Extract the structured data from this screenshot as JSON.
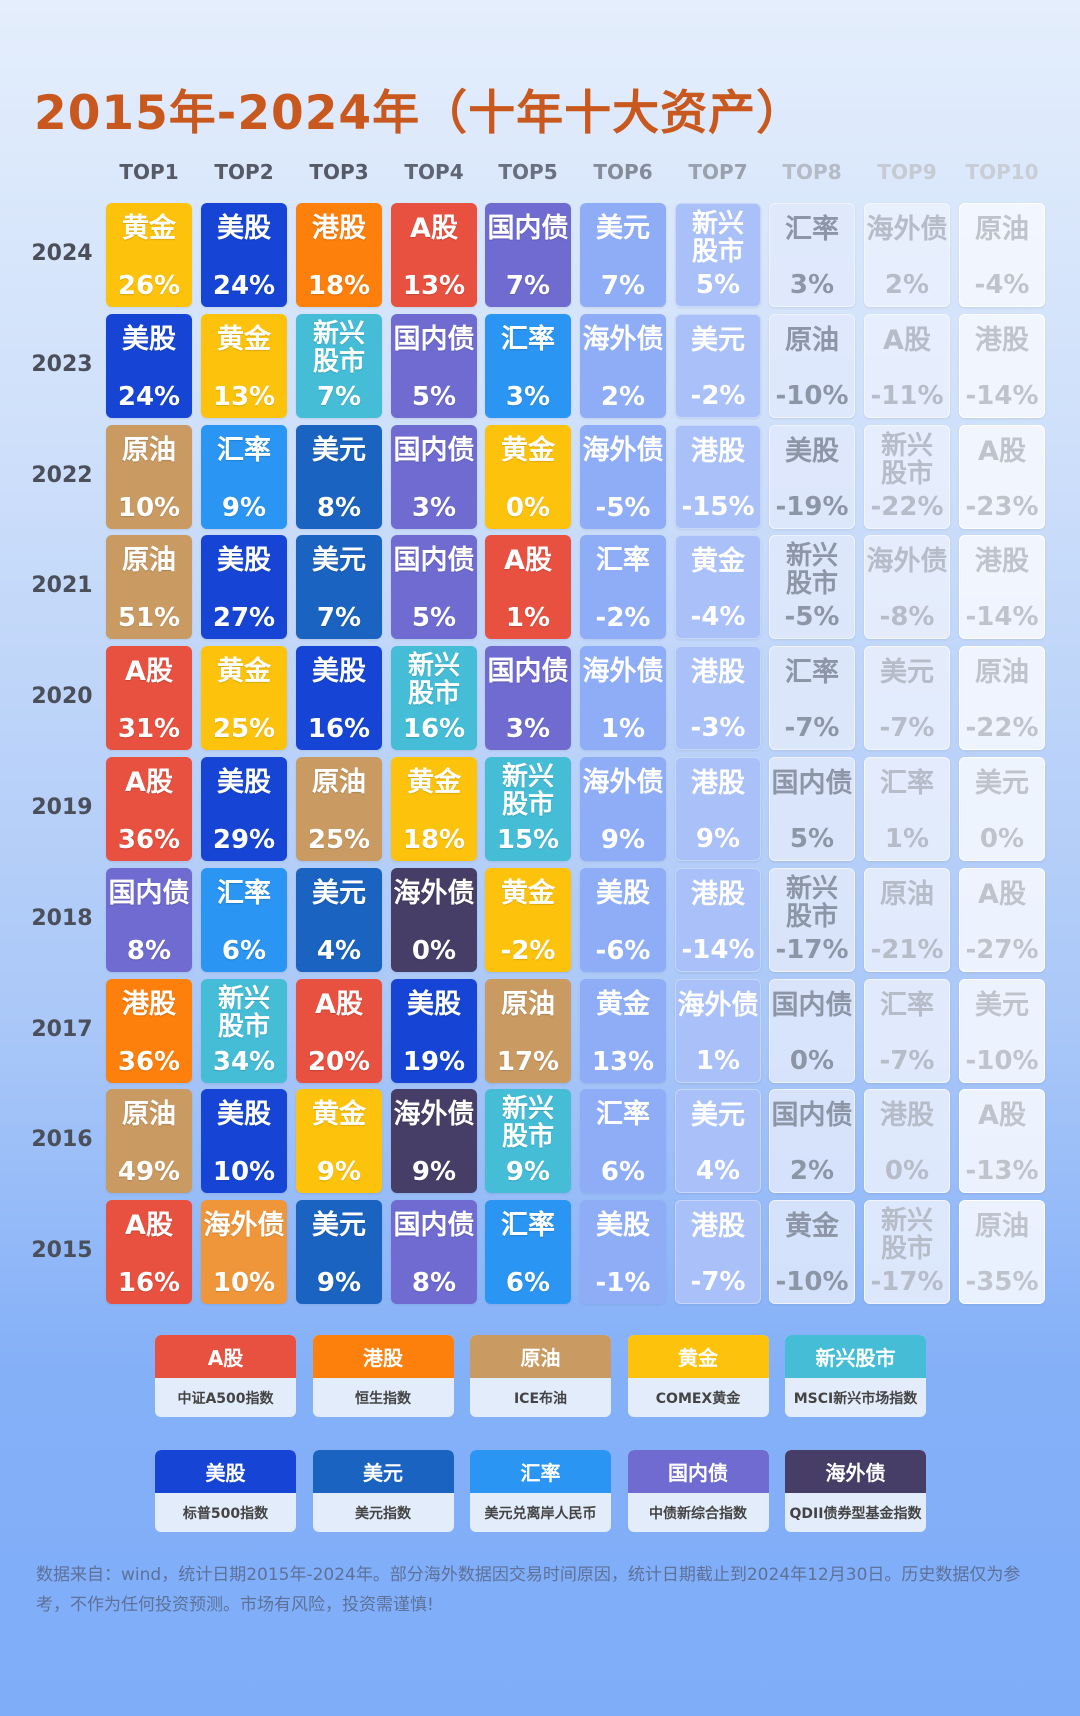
{
  "title": "2015年-2024年（十年十大资产）",
  "headers": [
    "TOP1",
    "TOP2",
    "TOP3",
    "TOP4",
    "TOP5",
    "TOP6",
    "TOP7",
    "TOP8",
    "TOP9",
    "TOP10"
  ],
  "header_colors": [
    "#555a66",
    "#555a66",
    "#555a66",
    "#5f6573",
    "#6a7080",
    "#858b98",
    "#9aa0ac",
    "#b5bbc6",
    "#c5cad3",
    "#c8cdd6"
  ],
  "asset_colors": {
    "A股": "#e8503f",
    "港股": "#fd800c",
    "原油": "#c99a62",
    "黄金": "#fdc30c",
    "新兴股市": "#45bdd7",
    "美股": "#1645d6",
    "美元": "#1b63c1",
    "汇率": "#2a95f2",
    "国内债": "#6f6bd0",
    "海外债": "#463e66"
  },
  "special_colors": {
    "2015-1": "#f0963a"
  },
  "rows": [
    {
      "year": "2024",
      "cells": [
        [
          "黄金",
          "26%"
        ],
        [
          "美股",
          "24%"
        ],
        [
          "港股",
          "18%"
        ],
        [
          "A股",
          "13%"
        ],
        [
          "国内债",
          "7%"
        ],
        [
          "美元",
          "7%"
        ],
        [
          "新兴股市",
          "5%"
        ],
        [
          "汇率",
          "3%"
        ],
        [
          "海外债",
          "2%"
        ],
        [
          "原油",
          "-4%"
        ]
      ]
    },
    {
      "year": "2023",
      "cells": [
        [
          "美股",
          "24%"
        ],
        [
          "黄金",
          "13%"
        ],
        [
          "新兴股市",
          "7%"
        ],
        [
          "国内债",
          "5%"
        ],
        [
          "汇率",
          "3%"
        ],
        [
          "海外债",
          "2%"
        ],
        [
          "美元",
          "-2%"
        ],
        [
          "原油",
          "-10%"
        ],
        [
          "A股",
          "-11%"
        ],
        [
          "港股",
          "-14%"
        ]
      ]
    },
    {
      "year": "2022",
      "cells": [
        [
          "原油",
          "10%"
        ],
        [
          "汇率",
          "9%"
        ],
        [
          "美元",
          "8%"
        ],
        [
          "国内债",
          "3%"
        ],
        [
          "黄金",
          "0%"
        ],
        [
          "海外债",
          "-5%"
        ],
        [
          "港股",
          "-15%"
        ],
        [
          "美股",
          "-19%"
        ],
        [
          "新兴股市",
          "-22%"
        ],
        [
          "A股",
          "-23%"
        ]
      ]
    },
    {
      "year": "2021",
      "cells": [
        [
          "原油",
          "51%"
        ],
        [
          "美股",
          "27%"
        ],
        [
          "美元",
          "7%"
        ],
        [
          "国内债",
          "5%"
        ],
        [
          "A股",
          "1%"
        ],
        [
          "汇率",
          "-2%"
        ],
        [
          "黄金",
          "-4%"
        ],
        [
          "新兴股市",
          "-5%"
        ],
        [
          "海外债",
          "-8%"
        ],
        [
          "港股",
          "-14%"
        ]
      ]
    },
    {
      "year": "2020",
      "cells": [
        [
          "A股",
          "31%"
        ],
        [
          "黄金",
          "25%"
        ],
        [
          "美股",
          "16%"
        ],
        [
          "新兴股市",
          "16%"
        ],
        [
          "国内债",
          "3%"
        ],
        [
          "海外债",
          "1%"
        ],
        [
          "港股",
          "-3%"
        ],
        [
          "汇率",
          "-7%"
        ],
        [
          "美元",
          "-7%"
        ],
        [
          "原油",
          "-22%"
        ]
      ]
    },
    {
      "year": "2019",
      "cells": [
        [
          "A股",
          "36%"
        ],
        [
          "美股",
          "29%"
        ],
        [
          "原油",
          "25%"
        ],
        [
          "黄金",
          "18%"
        ],
        [
          "新兴股市",
          "15%"
        ],
        [
          "海外债",
          "9%"
        ],
        [
          "港股",
          "9%"
        ],
        [
          "国内债",
          "5%"
        ],
        [
          "汇率",
          "1%"
        ],
        [
          "美元",
          "0%"
        ]
      ]
    },
    {
      "year": "2018",
      "cells": [
        [
          "国内债",
          "8%"
        ],
        [
          "汇率",
          "6%"
        ],
        [
          "美元",
          "4%"
        ],
        [
          "海外债",
          "0%"
        ],
        [
          "黄金",
          "-2%"
        ],
        [
          "美股",
          "-6%"
        ],
        [
          "港股",
          "-14%"
        ],
        [
          "新兴股市",
          "-17%"
        ],
        [
          "原油",
          "-21%"
        ],
        [
          "A股",
          "-27%"
        ]
      ]
    },
    {
      "year": "2017",
      "cells": [
        [
          "港股",
          "36%"
        ],
        [
          "新兴股市",
          "34%"
        ],
        [
          "A股",
          "20%"
        ],
        [
          "美股",
          "19%"
        ],
        [
          "原油",
          "17%"
        ],
        [
          "黄金",
          "13%"
        ],
        [
          "海外债",
          "1%"
        ],
        [
          "国内债",
          "0%"
        ],
        [
          "汇率",
          "-7%"
        ],
        [
          "美元",
          "-10%"
        ]
      ]
    },
    {
      "year": "2016",
      "cells": [
        [
          "原油",
          "49%"
        ],
        [
          "美股",
          "10%"
        ],
        [
          "黄金",
          "9%"
        ],
        [
          "海外债",
          "9%"
        ],
        [
          "新兴股市",
          "9%"
        ],
        [
          "汇率",
          "6%"
        ],
        [
          "美元",
          "4%"
        ],
        [
          "国内债",
          "2%"
        ],
        [
          "港股",
          "0%"
        ],
        [
          "A股",
          "-13%"
        ]
      ]
    },
    {
      "year": "2015",
      "cells": [
        [
          "A股",
          "16%"
        ],
        [
          "海外债",
          "10%"
        ],
        [
          "美元",
          "9%"
        ],
        [
          "国内债",
          "8%"
        ],
        [
          "汇率",
          "6%"
        ],
        [
          "美股",
          "-1%"
        ],
        [
          "港股",
          "-7%"
        ],
        [
          "黄金",
          "-10%"
        ],
        [
          "新兴股市",
          "-17%"
        ],
        [
          "原油",
          "-35%"
        ]
      ]
    }
  ],
  "legend": [
    {
      "name": "A股",
      "desc": "中证A500指数"
    },
    {
      "name": "港股",
      "desc": "恒生指数"
    },
    {
      "name": "原油",
      "desc": "ICE布油"
    },
    {
      "name": "黄金",
      "desc": "COMEX黄金"
    },
    {
      "name": "新兴股市",
      "desc": "MSCI新兴市场指数"
    },
    {
      "name": "美股",
      "desc": "标普500指数"
    },
    {
      "name": "美元",
      "desc": "美元指数"
    },
    {
      "name": "汇率",
      "desc": "美元兑离岸人民币"
    },
    {
      "name": "国内债",
      "desc": "中债新综合指数"
    },
    {
      "name": "海外债",
      "desc": "QDII债券型基金指数"
    }
  ],
  "footnote": "数据来自：wind，统计日期2015年-2024年。部分海外数据因交易时间原因，统计日期截止到2024年12月30日。历史数据仅为参考，不作为任何投资预测。市场有风险，投资需谨慎!"
}
